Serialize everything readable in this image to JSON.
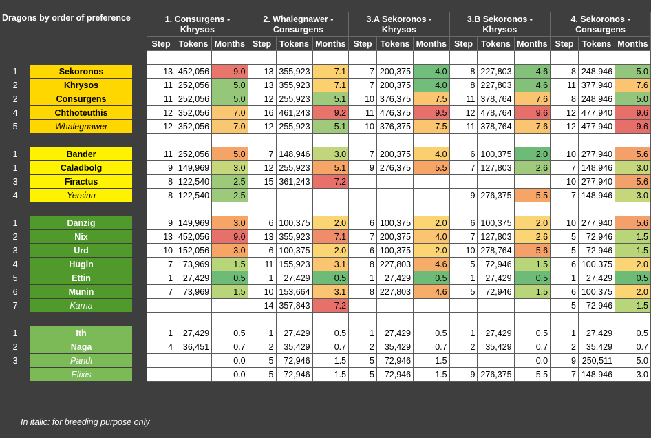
{
  "header": {
    "corner": "Dragons by order of preference",
    "scenarios": [
      "1. Consurgens - Khrysos",
      "2. Whalegnawer - Consurgens",
      "3.A Sekoronos - Khrysos",
      "3.B Sekoronos - Khrysos",
      "4. Sekoronos - Consurgens"
    ],
    "cols": [
      "Step",
      "Tokens",
      "Months"
    ]
  },
  "colors": {
    "yellow": "#ffd700",
    "lime": "#b8d957",
    "green": "#4f9a2b",
    "sage": "#7cba58",
    "heat_red": "#e8706a",
    "heat_orange": "#f6a466",
    "heat_yellow": "#fbd574",
    "heat_lightgreen": "#b9d57a",
    "heat_green": "#6dbb76"
  },
  "groups": [
    {
      "color": "#ffd700",
      "text_color": "#000000",
      "rows": [
        {
          "rank": "1",
          "name": "Sekoronos",
          "italic": false,
          "cells": [
            [
              "13",
              "452,056",
              "9.0",
              "#e8766c"
            ],
            [
              "13",
              "355,923",
              "7.1",
              "#fccf6f"
            ],
            [
              "7",
              "200,375",
              "4.0",
              "#71bd7b"
            ],
            [
              "8",
              "227,803",
              "4.6",
              "#83c07a"
            ],
            [
              "8",
              "248,946",
              "5.0",
              "#93c57c"
            ]
          ]
        },
        {
          "rank": "2",
          "name": "Khrysos",
          "italic": false,
          "cells": [
            [
              "11",
              "252,056",
              "5.0",
              "#96c67a"
            ],
            [
              "13",
              "355,923",
              "7.1",
              "#fccf6f"
            ],
            [
              "7",
              "200,375",
              "4.0",
              "#71bd7b"
            ],
            [
              "8",
              "227,803",
              "4.6",
              "#83c07a"
            ],
            [
              "11",
              "377,940",
              "7.6",
              "#fbc470"
            ]
          ]
        },
        {
          "rank": "2",
          "name": "Consurgens",
          "italic": false,
          "cells": [
            [
              "11",
              "252,056",
              "5.0",
              "#96c67a"
            ],
            [
              "12",
              "255,923",
              "5.1",
              "#9fc97b"
            ],
            [
              "10",
              "376,375",
              "7.5",
              "#fbc56f"
            ],
            [
              "11",
              "378,764",
              "7.6",
              "#fbc470"
            ],
            [
              "8",
              "248,946",
              "5.0",
              "#93c57c"
            ]
          ]
        },
        {
          "rank": "4",
          "name": "Chthoteuthis",
          "italic": false,
          "cells": [
            [
              "12",
              "352,056",
              "7.0",
              "#f9c772"
            ],
            [
              "16",
              "461,243",
              "9.2",
              "#e8736b"
            ],
            [
              "11",
              "476,375",
              "9.5",
              "#e8706a"
            ],
            [
              "12",
              "478,764",
              "9.6",
              "#e76f6a"
            ],
            [
              "12",
              "477,940",
              "9.6",
              "#e76f6a"
            ]
          ]
        },
        {
          "rank": "5",
          "name": "Whalegnawer",
          "italic": true,
          "cells": [
            [
              "12",
              "352,056",
              "7.0",
              "#f9c772"
            ],
            [
              "12",
              "255,923",
              "5.1",
              "#9fc97b"
            ],
            [
              "10",
              "376,375",
              "7.5",
              "#fbc56f"
            ],
            [
              "11",
              "378,764",
              "7.6",
              "#fbc470"
            ],
            [
              "12",
              "477,940",
              "9.6",
              "#e76f6a"
            ]
          ]
        }
      ]
    },
    {
      "color": "#fff200",
      "text_color": "#000000",
      "rows": [
        {
          "rank": "1",
          "name": "Bander",
          "italic": false,
          "cells": [
            [
              "11",
              "252,056",
              "5.0",
              "#f5a468"
            ],
            [
              "7",
              "148,946",
              "3.0",
              "#c1d67c"
            ],
            [
              "7",
              "200,375",
              "4.0",
              "#fbcf6f"
            ],
            [
              "6",
              "100,375",
              "2.0",
              "#6dbb76"
            ],
            [
              "10",
              "277,940",
              "5.6",
              "#f4a06a"
            ]
          ]
        },
        {
          "rank": "1",
          "name": "Caladbolg",
          "italic": false,
          "cells": [
            [
              "9",
              "149,969",
              "3.0",
              "#c6d67b"
            ],
            [
              "12",
              "255,923",
              "5.1",
              "#f6a566"
            ],
            [
              "9",
              "276,375",
              "5.5",
              "#f6a566"
            ],
            [
              "7",
              "127,803",
              "2.6",
              "#9fc97b"
            ],
            [
              "7",
              "148,946",
              "3.0",
              "#c6d67b"
            ]
          ]
        },
        {
          "rank": "3",
          "name": "Firactus",
          "italic": false,
          "cells": [
            [
              "8",
              "122,540",
              "2.5",
              "#9dc97b"
            ],
            [
              "15",
              "361,243",
              "7.2",
              "#e8706a"
            ],
            [
              "",
              "",
              "",
              ""
            ],
            [
              "",
              "",
              "",
              ""
            ],
            [
              "10",
              "277,940",
              "5.6",
              "#f4a06a"
            ]
          ]
        },
        {
          "rank": "4",
          "name": "Yersinu",
          "italic": true,
          "cells": [
            [
              "8",
              "122,540",
              "2.5",
              "#9dc97b"
            ],
            [
              "",
              "",
              "",
              ""
            ],
            [
              "",
              "",
              "",
              ""
            ],
            [
              "9",
              "276,375",
              "5.5",
              "#f6a566"
            ],
            [
              "7",
              "148,946",
              "3.0",
              "#c6d67b"
            ]
          ]
        }
      ]
    },
    {
      "color": "#4f9a2b",
      "text_color": "#ffffff",
      "rows": [
        {
          "rank": "1",
          "name": "Danzig",
          "italic": false,
          "cells": [
            [
              "9",
              "149,969",
              "3.0",
              "#f6a566"
            ],
            [
              "6",
              "100,375",
              "2.0",
              "#fbd574"
            ],
            [
              "6",
              "100,375",
              "2.0",
              "#fbd574"
            ],
            [
              "6",
              "100,375",
              "2.0",
              "#fbd574"
            ],
            [
              "10",
              "277,940",
              "5.6",
              "#f4a06a"
            ]
          ]
        },
        {
          "rank": "2",
          "name": "Nix",
          "italic": false,
          "cells": [
            [
              "13",
              "452,056",
              "9.0",
              "#e8706a"
            ],
            [
              "13",
              "355,923",
              "7.1",
              "#f08c6a"
            ],
            [
              "7",
              "200,375",
              "4.0",
              "#fbc470"
            ],
            [
              "7",
              "127,803",
              "2.6",
              "#fbd574"
            ],
            [
              "5",
              "72,946",
              "1.5",
              "#b9d57a"
            ]
          ]
        },
        {
          "rank": "3",
          "name": "Urd",
          "italic": false,
          "cells": [
            [
              "10",
              "152,056",
              "3.0",
              "#f6a566"
            ],
            [
              "6",
              "100,375",
              "2.0",
              "#fbd574"
            ],
            [
              "6",
              "100,375",
              "2.0",
              "#fbd574"
            ],
            [
              "10",
              "278,764",
              "5.6",
              "#f4a06a"
            ],
            [
              "5",
              "72,946",
              "1.5",
              "#b9d57a"
            ]
          ]
        },
        {
          "rank": "4",
          "name": "Hugin",
          "italic": false,
          "cells": [
            [
              "7",
              "73,969",
              "1.5",
              "#b9d57a"
            ],
            [
              "11",
              "155,923",
              "3.1",
              "#fbc470"
            ],
            [
              "8",
              "227,803",
              "4.6",
              "#f7ad6a"
            ],
            [
              "5",
              "72,946",
              "1.5",
              "#b9d57a"
            ],
            [
              "6",
              "100,375",
              "2.0",
              "#fbd574"
            ]
          ]
        },
        {
          "rank": "5",
          "name": "Ettin",
          "italic": false,
          "cells": [
            [
              "1",
              "27,429",
              "0.5",
              "#6dbb76"
            ],
            [
              "1",
              "27,429",
              "0.5",
              "#6dbb76"
            ],
            [
              "1",
              "27,429",
              "0.5",
              "#6dbb76"
            ],
            [
              "1",
              "27,429",
              "0.5",
              "#6dbb76"
            ],
            [
              "1",
              "27,429",
              "0.5",
              "#6dbb76"
            ]
          ]
        },
        {
          "rank": "6",
          "name": "Munin",
          "italic": false,
          "cells": [
            [
              "7",
              "73,969",
              "1.5",
              "#b9d57a"
            ],
            [
              "10",
              "153,664",
              "3.1",
              "#fbc470"
            ],
            [
              "8",
              "227,803",
              "4.6",
              "#f7ad6a"
            ],
            [
              "5",
              "72,946",
              "1.5",
              "#b9d57a"
            ],
            [
              "6",
              "100,375",
              "2.0",
              "#fbd574"
            ]
          ]
        },
        {
          "rank": "7",
          "name": "Karna",
          "italic": true,
          "cells": [
            [
              "",
              "",
              "",
              ""
            ],
            [
              "14",
              "357,843",
              "7.2",
              "#e8706a"
            ],
            [
              "",
              "",
              "",
              ""
            ],
            [
              "",
              "",
              "",
              ""
            ],
            [
              "5",
              "72,946",
              "1.5",
              "#b9d57a"
            ]
          ]
        }
      ]
    },
    {
      "color": "#7cba58",
      "text_color": "#ffffff",
      "rows": [
        {
          "rank": "1",
          "name": "Ith",
          "italic": false,
          "cells": [
            [
              "1",
              "27,429",
              "0.5",
              ""
            ],
            [
              "1",
              "27,429",
              "0.5",
              ""
            ],
            [
              "1",
              "27,429",
              "0.5",
              ""
            ],
            [
              "1",
              "27,429",
              "0.5",
              ""
            ],
            [
              "1",
              "27,429",
              "0.5",
              ""
            ]
          ]
        },
        {
          "rank": "2",
          "name": "Naga",
          "italic": false,
          "cells": [
            [
              "4",
              "36,451",
              "0.7",
              ""
            ],
            [
              "2",
              "35,429",
              "0.7",
              ""
            ],
            [
              "2",
              "35,429",
              "0.7",
              ""
            ],
            [
              "2",
              "35,429",
              "0.7",
              ""
            ],
            [
              "2",
              "35,429",
              "0.7",
              ""
            ]
          ]
        },
        {
          "rank": "3",
          "name": "Pandi",
          "italic": true,
          "cells": [
            [
              "",
              "",
              "0.0",
              ""
            ],
            [
              "5",
              "72,946",
              "1.5",
              ""
            ],
            [
              "5",
              "72,946",
              "1.5",
              ""
            ],
            [
              "",
              "",
              "0.0",
              ""
            ],
            [
              "9",
              "250,511",
              "5.0",
              ""
            ]
          ]
        },
        {
          "rank": "",
          "name": "Elixis",
          "italic": true,
          "cells": [
            [
              "",
              "",
              "0.0",
              ""
            ],
            [
              "5",
              "72,946",
              "1.5",
              ""
            ],
            [
              "5",
              "72,946",
              "1.5",
              ""
            ],
            [
              "9",
              "276,375",
              "5.5",
              ""
            ],
            [
              "7",
              "148,946",
              "3.0",
              ""
            ]
          ]
        }
      ]
    }
  ],
  "footnote": "In italic: for breeding purpose only"
}
